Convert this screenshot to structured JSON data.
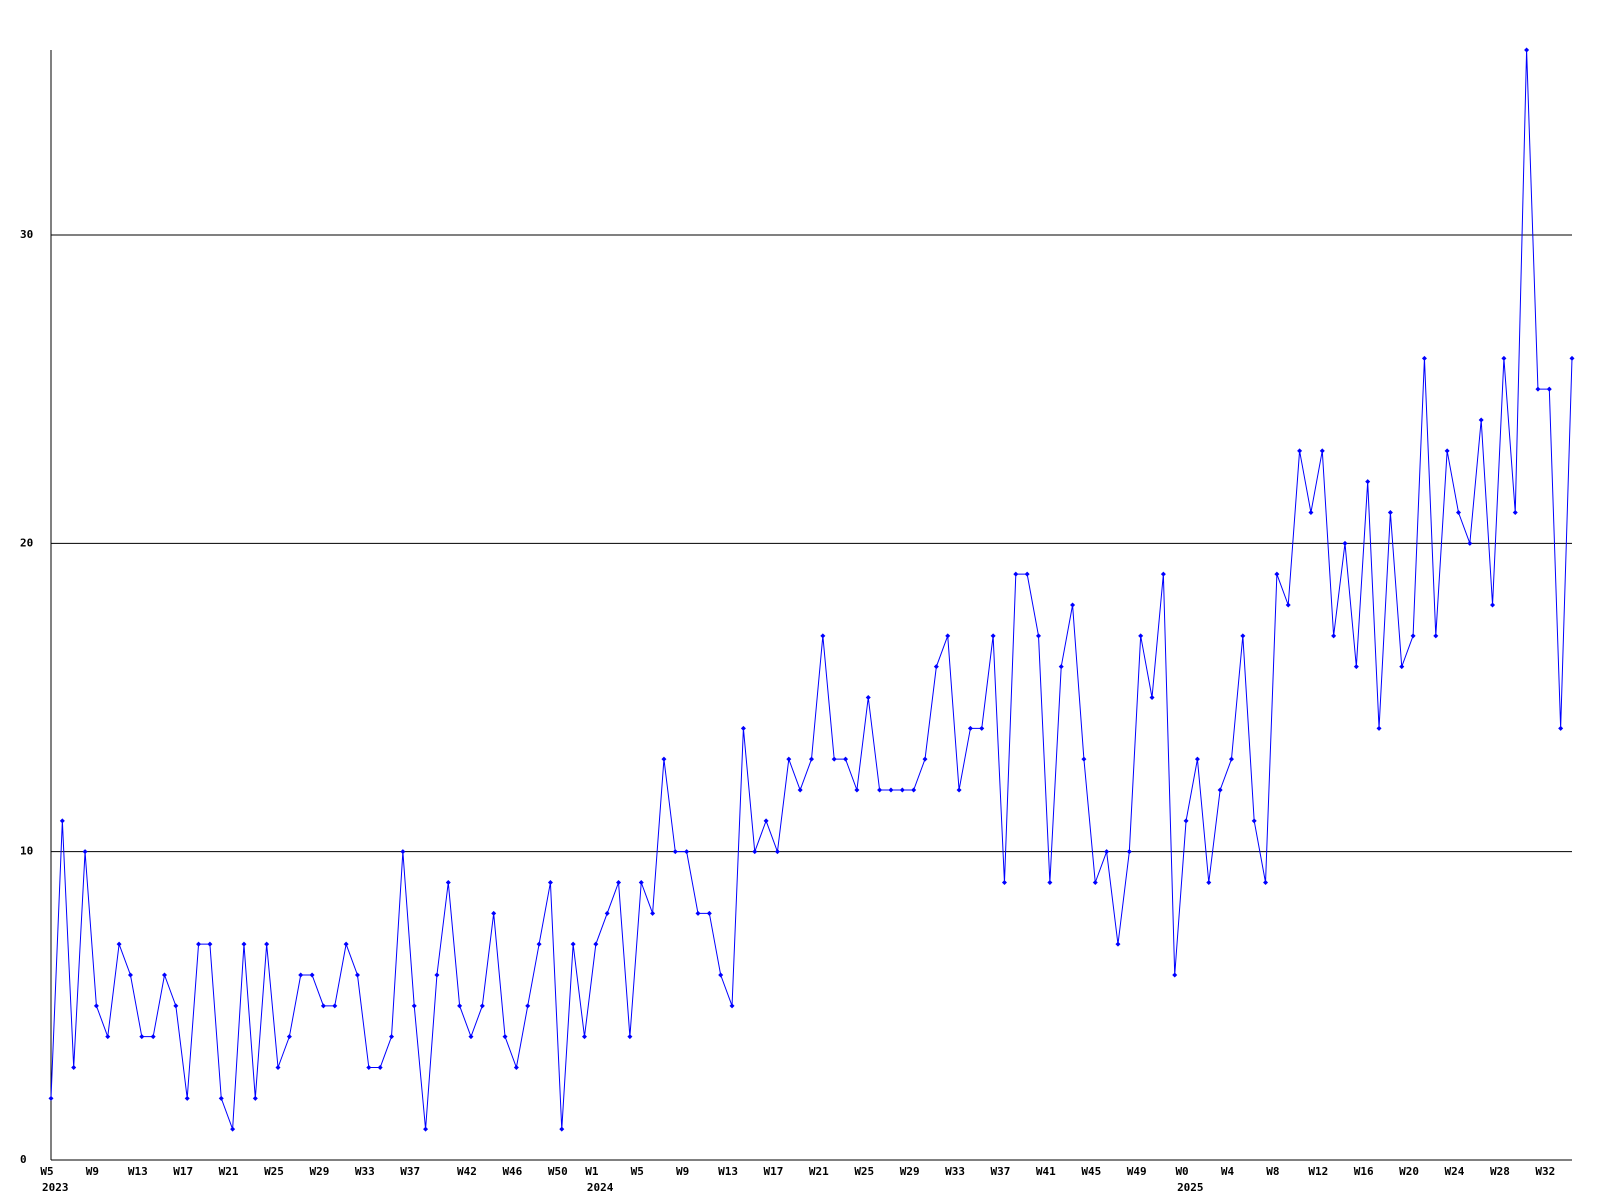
{
  "chart_data": {
    "type": "line",
    "color": "#0000ff",
    "grid": true,
    "ylim": [
      0,
      36
    ],
    "yticks": [
      0,
      10,
      20,
      30
    ],
    "categories": [
      "W5",
      null,
      null,
      null,
      "W9",
      null,
      null,
      null,
      "W13",
      null,
      null,
      null,
      "W17",
      null,
      null,
      null,
      "W21",
      null,
      null,
      null,
      "W25",
      null,
      null,
      null,
      "W29",
      null,
      null,
      null,
      "W33",
      null,
      null,
      null,
      "W37",
      null,
      null,
      null,
      null,
      "W42",
      null,
      null,
      null,
      "W46",
      null,
      null,
      null,
      "W50",
      null,
      null,
      "W1",
      null,
      null,
      null,
      "W5",
      null,
      null,
      null,
      "W9",
      null,
      null,
      null,
      "W13",
      null,
      null,
      null,
      "W17",
      null,
      null,
      null,
      "W21",
      null,
      null,
      null,
      "W25",
      null,
      null,
      null,
      "W29",
      null,
      null,
      null,
      "W33",
      null,
      null,
      null,
      "W37",
      null,
      null,
      null,
      "W41",
      null,
      null,
      null,
      "W45",
      null,
      null,
      null,
      "W49",
      null,
      null,
      null,
      "W0",
      null,
      null,
      null,
      "W4",
      null,
      null,
      null,
      "W8",
      null,
      null,
      null,
      "W12",
      null,
      null,
      null,
      "W16",
      null,
      null,
      null,
      "W20",
      null,
      null,
      null,
      "W24",
      null,
      null,
      null,
      "W28",
      null,
      null,
      null,
      "W32",
      null,
      null
    ],
    "x_group_labels": [
      {
        "label": "2023",
        "category": 0
      },
      {
        "label": "2024",
        "category": 48
      },
      {
        "label": "2025",
        "category": 100
      }
    ],
    "values": [
      2,
      11,
      3,
      10,
      5,
      4,
      7,
      6,
      4,
      4,
      6,
      5,
      2,
      7,
      7,
      2,
      1,
      7,
      2,
      7,
      3,
      4,
      6,
      6,
      5,
      5,
      7,
      6,
      3,
      3,
      4,
      10,
      5,
      1,
      6,
      9,
      5,
      4,
      5,
      8,
      4,
      3,
      5,
      7,
      9,
      1,
      7,
      4,
      7,
      8,
      9,
      4,
      9,
      8,
      13,
      10,
      10,
      8,
      8,
      6,
      5,
      14,
      10,
      11,
      10,
      13,
      12,
      13,
      17,
      13,
      13,
      12,
      15,
      12,
      12,
      12,
      12,
      13,
      16,
      17,
      12,
      14,
      14,
      17,
      9,
      19,
      19,
      17,
      9,
      16,
      18,
      13,
      9,
      10,
      7,
      10,
      17,
      15,
      19,
      6,
      11,
      13,
      9,
      12,
      13,
      17,
      11,
      9,
      19,
      18,
      23,
      21,
      23,
      17,
      20,
      16,
      22,
      14,
      21,
      16,
      17,
      26,
      17,
      23,
      21,
      20,
      24,
      18,
      26,
      21,
      36,
      25,
      25,
      14,
      26
    ]
  }
}
